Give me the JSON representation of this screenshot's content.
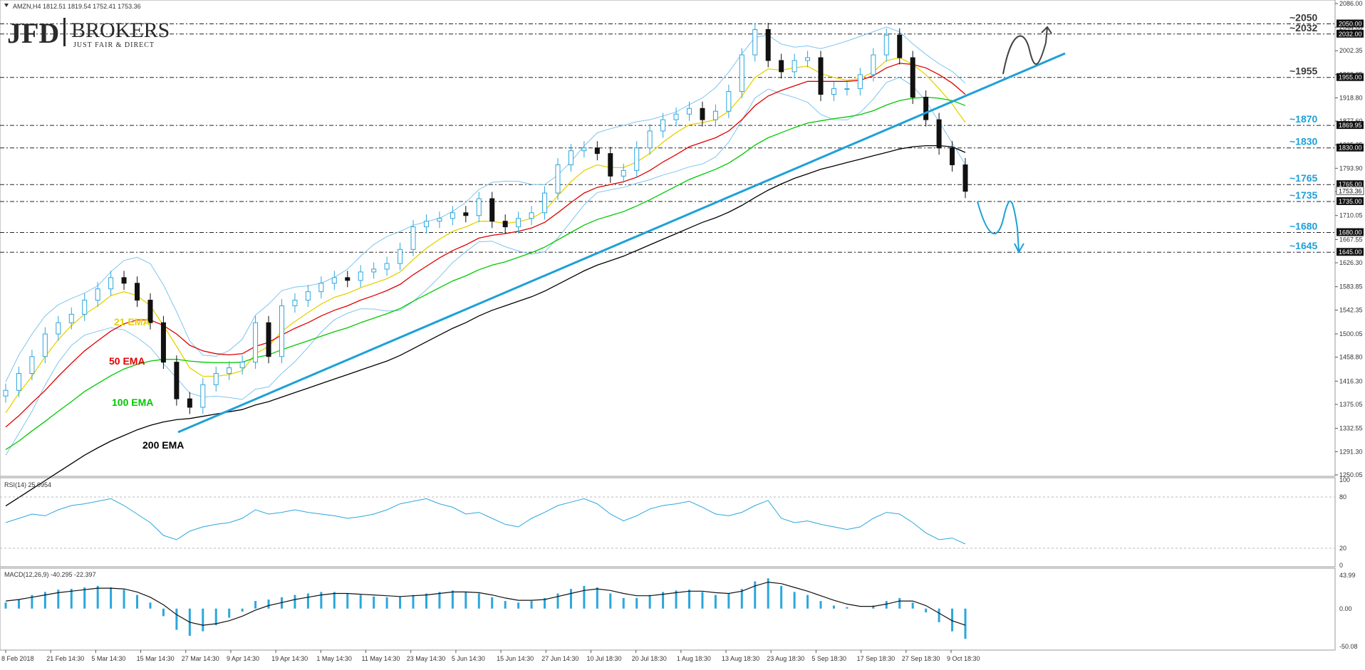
{
  "header": {
    "symbol_line": "AMZN,H4  1812.51 1819.54 1752.41 1753.36"
  },
  "logo": {
    "brand_left": "JFD",
    "brand_right": "BROKERS",
    "tagline": "JUST FAIR & DIRECT"
  },
  "colors": {
    "ema21": "#e6d200",
    "ema50": "#e00000",
    "ema100": "#00c800",
    "ema200": "#000000",
    "bands": "#7fc4ee",
    "candles": "#2aa7dd",
    "trendline": "#1ea0d8",
    "level_label_dark": "#3a3a3a",
    "level_label_blue": "#1ea0d8"
  },
  "ema_labels": {
    "ema21": "21 EMA",
    "ema50": "50 EMA",
    "ema100": "100 EMA",
    "ema200": "200 EMA"
  },
  "levels": [
    {
      "label": "~2050",
      "value": 2050,
      "tag": "2050.00",
      "color": "dark"
    },
    {
      "label": "~2032",
      "value": 2032,
      "tag": "2032.00",
      "color": "dark"
    },
    {
      "label": "~1955",
      "value": 1955,
      "tag": "1955.00",
      "color": "dark"
    },
    {
      "label": "~1870",
      "value": 1869.95,
      "tag": "1869.95",
      "color": "blue"
    },
    {
      "label": "~1830",
      "value": 1830,
      "tag": "1830.00",
      "color": "blue"
    },
    {
      "label": "~1765",
      "value": 1765,
      "tag": "1765.00",
      "color": "blue"
    },
    {
      "label": "~1735",
      "value": 1735,
      "tag": "1735.00",
      "color": "blue"
    },
    {
      "label": "~1680",
      "value": 1680,
      "tag": "1680.00",
      "color": "blue"
    },
    {
      "label": "~1645",
      "value": 1645,
      "tag": "1645.00",
      "color": "blue"
    }
  ],
  "current_price_tag": "1753.36",
  "chart_data": {
    "type": "line",
    "title": "AMZN,H4",
    "price_axis": {
      "ticks": [
        "2086.00",
        "2044.00",
        "2002.35",
        "1960.05",
        "1918.80",
        "1877.60",
        "1835.25",
        "1793.90",
        "1752.65",
        "1710.05",
        "1667.55",
        "1626.30",
        "1583.85",
        "1542.35",
        "1500.05",
        "1458.80",
        "1416.30",
        "1375.05",
        "1332.55",
        "1291.30",
        "1250.05"
      ],
      "ylim": [
        1250.05,
        2086.0
      ]
    },
    "x_ticks": [
      "8 Feb 2018",
      "21 Feb 14:30",
      "5 Mar 14:30",
      "15 Mar 14:30",
      "27 Mar 14:30",
      "9 Apr 14:30",
      "19 Apr 14:30",
      "1 May 14:30",
      "11 May 14:30",
      "23 May 14:30",
      "5 Jun 14:30",
      "15 Jun 14:30",
      "27 Jun 14:30",
      "10 Jul 18:30",
      "20 Jul 18:30",
      "1 Aug 18:30",
      "13 Aug 18:30",
      "23 Aug 18:30",
      "5 Sep 18:30",
      "17 Sep 18:30",
      "27 Sep 18:30",
      "9 Oct 18:30"
    ],
    "close": [
      1400,
      1430,
      1460,
      1500,
      1520,
      1535,
      1560,
      1580,
      1600,
      1590,
      1560,
      1520,
      1450,
      1385,
      1370,
      1410,
      1430,
      1440,
      1450,
      1520,
      1460,
      1550,
      1560,
      1575,
      1590,
      1600,
      1595,
      1610,
      1615,
      1625,
      1650,
      1690,
      1700,
      1705,
      1715,
      1710,
      1740,
      1700,
      1690,
      1705,
      1715,
      1750,
      1800,
      1825,
      1830,
      1820,
      1780,
      1790,
      1830,
      1860,
      1880,
      1890,
      1900,
      1880,
      1895,
      1930,
      1995,
      2040,
      1985,
      1965,
      1985,
      1990,
      1925,
      1935,
      1935,
      1960,
      1995,
      2030,
      1990,
      1920,
      1880,
      1830,
      1800,
      1753
    ],
    "series": [
      {
        "name": "21 EMA",
        "values": [
          1360,
          1395,
          1425,
          1460,
          1490,
          1515,
          1535,
          1550,
          1568,
          1575,
          1568,
          1550,
          1515,
          1478,
          1440,
          1425,
          1425,
          1428,
          1435,
          1465,
          1478,
          1505,
          1522,
          1538,
          1553,
          1565,
          1572,
          1582,
          1590,
          1598,
          1610,
          1632,
          1652,
          1668,
          1682,
          1690,
          1700,
          1700,
          1696,
          1699,
          1705,
          1718,
          1745,
          1770,
          1790,
          1800,
          1795,
          1795,
          1805,
          1820,
          1840,
          1857,
          1871,
          1875,
          1880,
          1895,
          1922,
          1955,
          1970,
          1968,
          1972,
          1975,
          1962,
          1955,
          1950,
          1953,
          1965,
          1985,
          1990,
          1978,
          1960,
          1935,
          1908,
          1875
        ]
      },
      {
        "name": "50 EMA",
        "values": [
          1335,
          1355,
          1378,
          1400,
          1425,
          1448,
          1470,
          1488,
          1505,
          1518,
          1525,
          1525,
          1515,
          1500,
          1480,
          1470,
          1465,
          1463,
          1465,
          1478,
          1485,
          1498,
          1510,
          1520,
          1532,
          1542,
          1550,
          1560,
          1568,
          1577,
          1588,
          1605,
          1620,
          1635,
          1648,
          1658,
          1670,
          1675,
          1678,
          1682,
          1688,
          1698,
          1715,
          1733,
          1750,
          1760,
          1765,
          1770,
          1778,
          1790,
          1805,
          1818,
          1832,
          1840,
          1848,
          1860,
          1880,
          1905,
          1922,
          1932,
          1940,
          1948,
          1948,
          1948,
          1948,
          1950,
          1958,
          1972,
          1980,
          1978,
          1972,
          1960,
          1945,
          1925
        ]
      },
      {
        "name": "100 EMA",
        "values": [
          1295,
          1310,
          1328,
          1345,
          1363,
          1380,
          1398,
          1412,
          1426,
          1438,
          1446,
          1452,
          1455,
          1455,
          1452,
          1450,
          1449,
          1449,
          1450,
          1458,
          1463,
          1472,
          1480,
          1488,
          1496,
          1504,
          1511,
          1520,
          1528,
          1536,
          1545,
          1558,
          1570,
          1582,
          1594,
          1603,
          1614,
          1622,
          1628,
          1636,
          1644,
          1654,
          1667,
          1680,
          1693,
          1703,
          1710,
          1717,
          1727,
          1738,
          1750,
          1762,
          1774,
          1783,
          1792,
          1803,
          1818,
          1835,
          1848,
          1857,
          1866,
          1874,
          1878,
          1882,
          1885,
          1889,
          1896,
          1906,
          1914,
          1918,
          1920,
          1918,
          1914,
          1905
        ]
      },
      {
        "name": "200 EMA",
        "values": [
          1195,
          1210,
          1225,
          1240,
          1255,
          1270,
          1285,
          1298,
          1310,
          1320,
          1330,
          1338,
          1344,
          1348,
          1350,
          1354,
          1358,
          1362,
          1366,
          1374,
          1380,
          1388,
          1396,
          1404,
          1412,
          1420,
          1428,
          1436,
          1444,
          1452,
          1462,
          1474,
          1486,
          1498,
          1510,
          1520,
          1532,
          1542,
          1550,
          1558,
          1566,
          1576,
          1588,
          1600,
          1612,
          1622,
          1630,
          1638,
          1648,
          1658,
          1668,
          1678,
          1688,
          1698,
          1706,
          1716,
          1728,
          1742,
          1755,
          1766,
          1776,
          1784,
          1792,
          1798,
          1804,
          1810,
          1816,
          1822,
          1828,
          1832,
          1834,
          1834,
          1832,
          1822
        ]
      }
    ],
    "rsi": {
      "label": "RSI(14) 25.0954",
      "ticks": [
        "100",
        "80",
        "20",
        "0"
      ],
      "values": [
        50,
        55,
        60,
        58,
        65,
        70,
        72,
        75,
        78,
        70,
        60,
        50,
        35,
        30,
        40,
        45,
        48,
        50,
        55,
        65,
        60,
        62,
        65,
        62,
        60,
        58,
        55,
        57,
        60,
        65,
        72,
        75,
        78,
        72,
        68,
        60,
        62,
        55,
        48,
        45,
        55,
        62,
        70,
        74,
        78,
        72,
        60,
        52,
        58,
        66,
        70,
        72,
        75,
        68,
        60,
        58,
        62,
        70,
        76,
        55,
        50,
        52,
        48,
        45,
        42,
        45,
        55,
        62,
        60,
        50,
        38,
        30,
        32,
        25
      ]
    },
    "macd": {
      "label": "MACD(12,26,9) -40.295 -22.397",
      "ticks": [
        "43.99",
        "0.00",
        "-50.08"
      ],
      "histogram": [
        8,
        12,
        18,
        22,
        25,
        26,
        28,
        30,
        28,
        25,
        18,
        8,
        -10,
        -28,
        -36,
        -30,
        -22,
        -12,
        -4,
        10,
        12,
        15,
        18,
        20,
        22,
        22,
        20,
        18,
        16,
        15,
        16,
        18,
        20,
        22,
        24,
        22,
        20,
        15,
        10,
        8,
        10,
        14,
        20,
        26,
        30,
        28,
        20,
        14,
        14,
        18,
        22,
        24,
        25,
        22,
        18,
        20,
        26,
        36,
        40,
        30,
        22,
        18,
        10,
        4,
        2,
        0,
        4,
        10,
        14,
        8,
        -5,
        -18,
        -30,
        -40
      ],
      "signal": [
        10,
        12,
        15,
        18,
        21,
        23,
        25,
        27,
        27,
        26,
        22,
        15,
        5,
        -8,
        -18,
        -22,
        -20,
        -16,
        -10,
        -2,
        4,
        8,
        12,
        15,
        18,
        20,
        20,
        19,
        18,
        17,
        16,
        17,
        18,
        20,
        22,
        22,
        21,
        18,
        14,
        11,
        11,
        12,
        16,
        20,
        24,
        26,
        24,
        20,
        17,
        17,
        19,
        21,
        23,
        23,
        21,
        20,
        23,
        30,
        35,
        33,
        28,
        23,
        17,
        11,
        6,
        3,
        3,
        6,
        10,
        10,
        4,
        -6,
        -16,
        -22
      ]
    }
  }
}
